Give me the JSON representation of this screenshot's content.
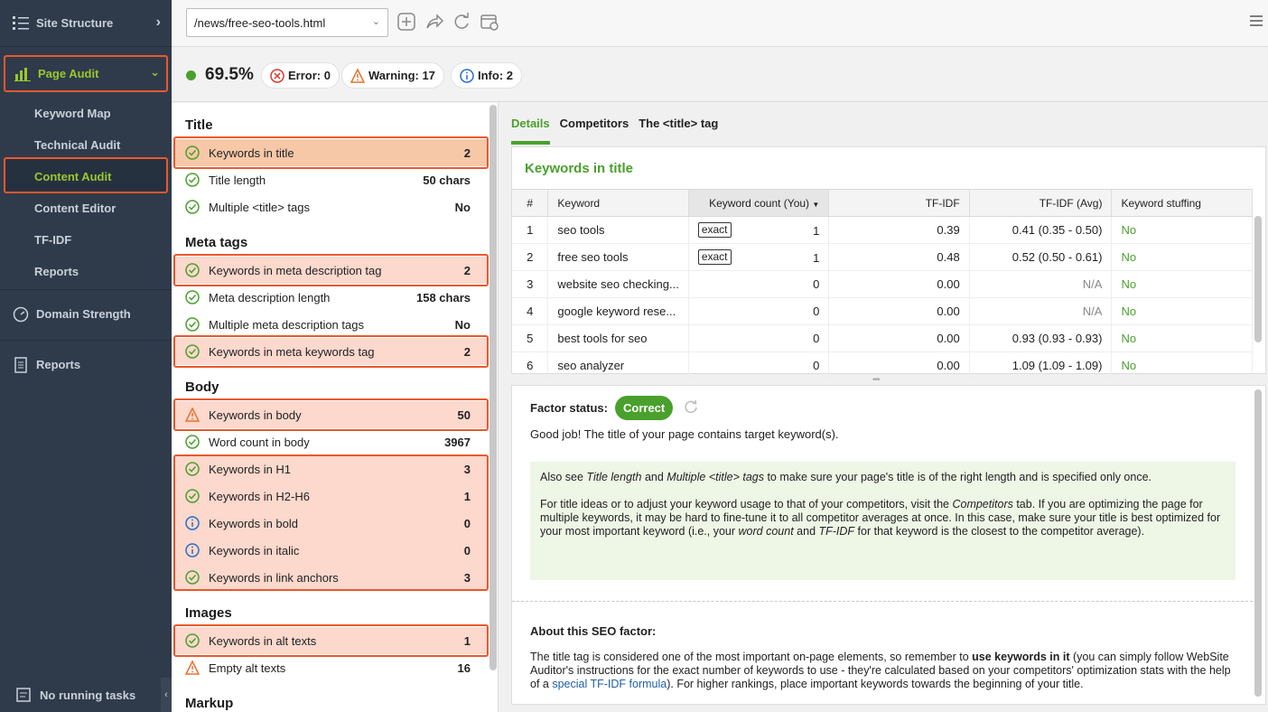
{
  "sidebar": {
    "site_structure": "Site Structure",
    "page_audit": "Page Audit",
    "sub_items": [
      "Keyword Map",
      "Technical Audit",
      "Content Audit",
      "Content Editor",
      "TF-IDF",
      "Reports"
    ],
    "domain_strength": "Domain Strength",
    "reports": "Reports",
    "running_tasks": "No running tasks"
  },
  "toolbar": {
    "url": "/news/free-seo-tools.html"
  },
  "score": {
    "value": "69.5%",
    "error": "Error: 0",
    "warning": "Warning: 17",
    "info": "Info: 2"
  },
  "factors": {
    "title": {
      "heading": "Title",
      "rows": [
        {
          "label": "Keywords in title",
          "value": "2"
        },
        {
          "label": "Title length",
          "value": "50 chars"
        },
        {
          "label": "Multiple <title> tags",
          "value": "No"
        }
      ]
    },
    "meta": {
      "heading": "Meta tags",
      "rows": [
        {
          "label": "Keywords in meta description tag",
          "value": "2"
        },
        {
          "label": "Meta description length",
          "value": "158 chars"
        },
        {
          "label": "Multiple meta description tags",
          "value": "No"
        },
        {
          "label": "Keywords in meta keywords tag",
          "value": "2"
        }
      ]
    },
    "body": {
      "heading": "Body",
      "rows": [
        {
          "label": "Keywords in body",
          "value": "50"
        },
        {
          "label": "Word count in body",
          "value": "3967"
        },
        {
          "label": "Keywords in H1",
          "value": "3"
        },
        {
          "label": "Keywords in H2-H6",
          "value": "1"
        },
        {
          "label": "Keywords in bold",
          "value": "0"
        },
        {
          "label": "Keywords in italic",
          "value": "0"
        },
        {
          "label": "Keywords in link anchors",
          "value": "3"
        }
      ]
    },
    "images": {
      "heading": "Images",
      "rows": [
        {
          "label": "Keywords in alt texts",
          "value": "1"
        },
        {
          "label": "Empty alt texts",
          "value": "16"
        }
      ]
    },
    "markup": {
      "heading": "Markup"
    }
  },
  "tabs": [
    "Details",
    "Competitors",
    "The <title> tag"
  ],
  "keywords_panel": {
    "title": "Keywords in title",
    "columns": [
      "#",
      "Keyword",
      "Keyword count (You)",
      "TF-IDF",
      "TF-IDF (Avg)",
      "Keyword stuffing"
    ],
    "rows": [
      {
        "n": "1",
        "kw": "seo tools",
        "tag": "exact",
        "count": "1",
        "tfidf": "0.39",
        "avg": "0.41 (0.35 - 0.50)",
        "stuff": "No"
      },
      {
        "n": "2",
        "kw": "free seo tools",
        "tag": "exact",
        "count": "1",
        "tfidf": "0.48",
        "avg": "0.52 (0.50 - 0.61)",
        "stuff": "No"
      },
      {
        "n": "3",
        "kw": "website seo checking...",
        "tag": "",
        "count": "0",
        "tfidf": "0.00",
        "avg": "N/A",
        "stuff": "No"
      },
      {
        "n": "4",
        "kw": "google keyword rese...",
        "tag": "",
        "count": "0",
        "tfidf": "0.00",
        "avg": "N/A",
        "stuff": "No"
      },
      {
        "n": "5",
        "kw": "best tools for seo",
        "tag": "",
        "count": "0",
        "tfidf": "0.00",
        "avg": "0.93 (0.93 - 0.93)",
        "stuff": "No"
      },
      {
        "n": "6",
        "kw": "seo analyzer",
        "tag": "",
        "count": "0",
        "tfidf": "0.00",
        "avg": "1.09 (1.09 - 1.09)",
        "stuff": "No"
      }
    ]
  },
  "detail": {
    "status_label": "Factor status:",
    "status_value": "Correct",
    "good": "Good job! The title of your page contains target keyword(s).",
    "tip1_a": "Also see ",
    "tip1_b": "Title length",
    "tip1_c": " and ",
    "tip1_d": "Multiple <title> tags",
    "tip1_e": " to make sure your page's title is of the right length and is specified only once.",
    "tip2_a": "For title ideas or to adjust your keyword usage to that of your competitors, visit the ",
    "tip2_b": "Competitors",
    "tip2_c": " tab. If you are optimizing the page for multiple keywords, it may be hard to fine-tune it to all competitor averages at once. In this case, make sure your title is best optimized for your most important keyword (i.e., your ",
    "tip2_d": "word count",
    "tip2_e": " and ",
    "tip2_f": "TF-IDF",
    "tip2_g": " for that keyword is the closest to the competitor average).",
    "about_title": "About this SEO factor:",
    "about_a": "The title tag is considered one of the most important on-page elements, so remember to ",
    "about_b": "use keywords in it",
    "about_c": " (you can simply follow WebSite Auditor's instructions for the exact number of keywords to use - they're calculated based on your competitors' optimization stats with the help of a ",
    "about_link": "special TF-IDF formula",
    "about_d": "). For higher rankings, place important keywords towards the beginning of your title."
  },
  "colors": {
    "accent_green": "#4aa02c",
    "highlight_orange": "#e8592c",
    "sidebar_bg": "#2f3b4b"
  }
}
